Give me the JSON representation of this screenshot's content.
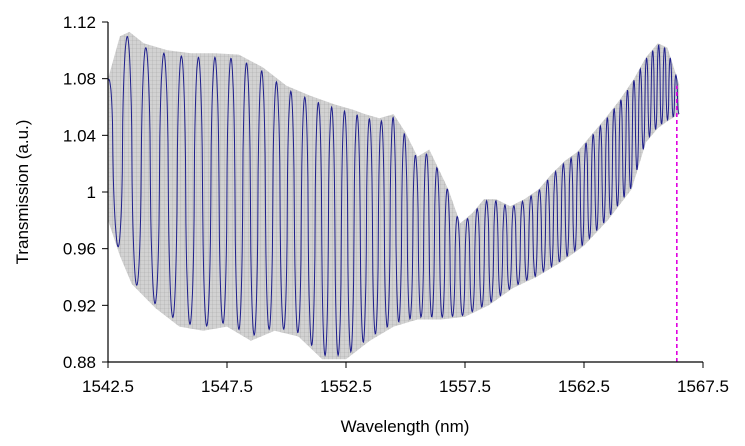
{
  "chart_data": {
    "type": "line",
    "title": "",
    "xlabel": "Wavelength (nm)",
    "ylabel": "Transmission (a.u.)",
    "xlim": [
      1542.5,
      1567.5
    ],
    "ylim": [
      0.88,
      1.12
    ],
    "x_ticks": [
      "1542.5",
      "1547.5",
      "1552.5",
      "1557.5",
      "1562.5",
      "1567.5"
    ],
    "y_ticks": [
      "0.88",
      "0.92",
      "0.96",
      "1",
      "1.04",
      "1.08",
      "1.12"
    ],
    "grid": false,
    "legend": "none",
    "colors": {
      "trace": "#1f1f8c",
      "envelope_fill": "#cfcfcf",
      "envelope_hatch": "#a8a8a8",
      "marker_line": "#e000e0"
    },
    "series": [
      {
        "role": "upper-envelope",
        "x": [
          1542.5,
          1543.0,
          1543.4,
          1544.0,
          1545.0,
          1546.0,
          1547.0,
          1548.0,
          1549.0,
          1550.0,
          1551.0,
          1552.0,
          1552.8,
          1553.3,
          1553.9,
          1554.5,
          1555.0,
          1555.5,
          1556.0,
          1556.8,
          1557.3,
          1557.8,
          1558.3,
          1558.8,
          1559.4,
          1560.0,
          1560.6,
          1561.1,
          1561.7,
          1562.2,
          1562.8,
          1563.4,
          1564.0,
          1564.6,
          1565.1,
          1565.6,
          1566.0,
          1566.5
        ],
        "y": [
          1.08,
          1.11,
          1.113,
          1.105,
          1.1,
          1.098,
          1.098,
          1.097,
          1.088,
          1.075,
          1.068,
          1.062,
          1.058,
          1.055,
          1.052,
          1.055,
          1.042,
          1.025,
          1.03,
          1.002,
          0.978,
          0.985,
          0.995,
          0.995,
          0.99,
          0.995,
          1.002,
          1.012,
          1.022,
          1.028,
          1.04,
          1.052,
          1.065,
          1.08,
          1.095,
          1.105,
          1.102,
          1.076
        ]
      },
      {
        "role": "lower-envelope",
        "x": [
          1542.5,
          1543.0,
          1543.5,
          1544.5,
          1545.5,
          1546.5,
          1547.5,
          1548.5,
          1549.5,
          1550.5,
          1551.5,
          1552.5,
          1553.5,
          1554.5,
          1555.5,
          1556.5,
          1557.5,
          1558.5,
          1559.5,
          1560.5,
          1561.5,
          1562.5,
          1563.5,
          1564.5,
          1565.1,
          1565.6,
          1566.0,
          1566.5
        ],
        "y": [
          0.98,
          0.955,
          0.935,
          0.918,
          0.905,
          0.902,
          0.905,
          0.895,
          0.902,
          0.898,
          0.882,
          0.882,
          0.895,
          0.905,
          0.91,
          0.91,
          0.912,
          0.92,
          0.932,
          0.94,
          0.95,
          0.962,
          0.98,
          1.002,
          1.035,
          1.045,
          1.05,
          1.055
        ]
      }
    ],
    "marker_line": {
      "x": 1566.4,
      "y_from": 0.88,
      "y_to": 1.075
    }
  }
}
